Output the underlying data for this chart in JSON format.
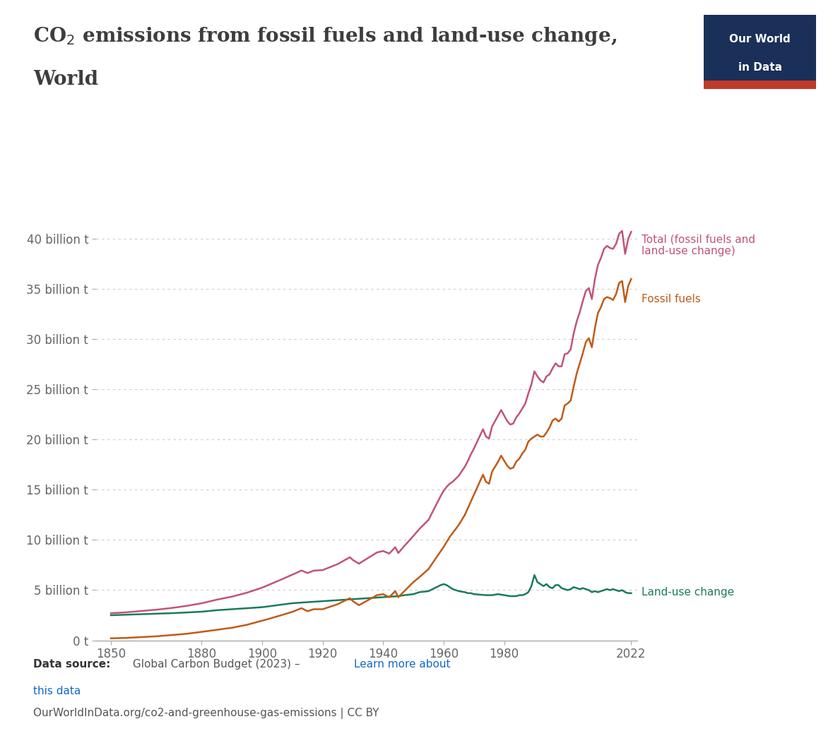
{
  "title_color": "#3d3d3d",
  "bg_color": "#ffffff",
  "fossil_color": "#bf5b17",
  "total_color": "#c0547a",
  "landuse_color": "#1a7b5a",
  "owid_bg": "#1a3058",
  "owid_red": "#c0392b",
  "xlabel_ticks": [
    1850,
    1880,
    1900,
    1920,
    1940,
    1960,
    1980,
    2022
  ],
  "ylim": [
    0,
    44
  ],
  "xlim": [
    1845,
    2024
  ],
  "ytick_labels": [
    "0 t",
    "5 billion t",
    "10 billion t",
    "15 billion t",
    "20 billion t",
    "25 billion t",
    "30 billion t",
    "35 billion t",
    "40 billion t"
  ],
  "ytick_values": [
    0,
    5,
    10,
    15,
    20,
    25,
    30,
    35,
    40
  ],
  "url_text": "OurWorldInData.org/co2-and-greenhouse-gas-emissions | CC BY",
  "annotation_total": "Total (fossil fuels and\nland-use change)",
  "annotation_fossil": "Fossil fuels",
  "annotation_landuse": "Land-use change",
  "fossil_points": [
    [
      1850,
      0.2
    ],
    [
      1855,
      0.24
    ],
    [
      1860,
      0.32
    ],
    [
      1865,
      0.4
    ],
    [
      1870,
      0.52
    ],
    [
      1875,
      0.65
    ],
    [
      1880,
      0.84
    ],
    [
      1885,
      1.05
    ],
    [
      1890,
      1.25
    ],
    [
      1895,
      1.55
    ],
    [
      1900,
      1.95
    ],
    [
      1905,
      2.38
    ],
    [
      1910,
      2.84
    ],
    [
      1913,
      3.2
    ],
    [
      1915,
      2.9
    ],
    [
      1917,
      3.1
    ],
    [
      1920,
      3.1
    ],
    [
      1925,
      3.6
    ],
    [
      1929,
      4.2
    ],
    [
      1930,
      3.9
    ],
    [
      1932,
      3.5
    ],
    [
      1935,
      4.0
    ],
    [
      1938,
      4.5
    ],
    [
      1940,
      4.6
    ],
    [
      1942,
      4.3
    ],
    [
      1944,
      4.9
    ],
    [
      1945,
      4.3
    ],
    [
      1948,
      5.2
    ],
    [
      1950,
      5.8
    ],
    [
      1952,
      6.3
    ],
    [
      1955,
      7.1
    ],
    [
      1957,
      8.0
    ],
    [
      1960,
      9.3
    ],
    [
      1962,
      10.3
    ],
    [
      1965,
      11.5
    ],
    [
      1967,
      12.5
    ],
    [
      1970,
      14.5
    ],
    [
      1973,
      16.5
    ],
    [
      1974,
      15.8
    ],
    [
      1975,
      15.6
    ],
    [
      1976,
      16.8
    ],
    [
      1978,
      17.8
    ],
    [
      1979,
      18.4
    ],
    [
      1980,
      17.9
    ],
    [
      1981,
      17.4
    ],
    [
      1982,
      17.1
    ],
    [
      1983,
      17.2
    ],
    [
      1984,
      17.8
    ],
    [
      1985,
      18.1
    ],
    [
      1986,
      18.6
    ],
    [
      1987,
      19.0
    ],
    [
      1988,
      19.8
    ],
    [
      1989,
      20.1
    ],
    [
      1990,
      20.3
    ],
    [
      1991,
      20.5
    ],
    [
      1992,
      20.3
    ],
    [
      1993,
      20.3
    ],
    [
      1994,
      20.7
    ],
    [
      1995,
      21.2
    ],
    [
      1996,
      21.9
    ],
    [
      1997,
      22.1
    ],
    [
      1998,
      21.8
    ],
    [
      1999,
      22.1
    ],
    [
      2000,
      23.4
    ],
    [
      2001,
      23.6
    ],
    [
      2002,
      23.9
    ],
    [
      2003,
      25.3
    ],
    [
      2004,
      26.6
    ],
    [
      2005,
      27.6
    ],
    [
      2006,
      28.6
    ],
    [
      2007,
      29.7
    ],
    [
      2008,
      30.1
    ],
    [
      2009,
      29.2
    ],
    [
      2010,
      31.1
    ],
    [
      2011,
      32.6
    ],
    [
      2012,
      33.2
    ],
    [
      2013,
      34.0
    ],
    [
      2014,
      34.2
    ],
    [
      2015,
      34.1
    ],
    [
      2016,
      33.9
    ],
    [
      2017,
      34.5
    ],
    [
      2018,
      35.6
    ],
    [
      2019,
      35.8
    ],
    [
      2020,
      33.7
    ],
    [
      2021,
      35.3
    ],
    [
      2022,
      36.0
    ]
  ],
  "landuse_points": [
    [
      1850,
      2.5
    ],
    [
      1855,
      2.55
    ],
    [
      1860,
      2.6
    ],
    [
      1865,
      2.65
    ],
    [
      1870,
      2.7
    ],
    [
      1875,
      2.78
    ],
    [
      1880,
      2.85
    ],
    [
      1885,
      3.0
    ],
    [
      1890,
      3.1
    ],
    [
      1895,
      3.2
    ],
    [
      1900,
      3.3
    ],
    [
      1905,
      3.5
    ],
    [
      1910,
      3.7
    ],
    [
      1915,
      3.8
    ],
    [
      1920,
      3.9
    ],
    [
      1925,
      4.0
    ],
    [
      1930,
      4.1
    ],
    [
      1935,
      4.2
    ],
    [
      1940,
      4.3
    ],
    [
      1945,
      4.4
    ],
    [
      1947,
      4.5
    ],
    [
      1950,
      4.6
    ],
    [
      1952,
      4.8
    ],
    [
      1955,
      4.9
    ],
    [
      1957,
      5.2
    ],
    [
      1959,
      5.5
    ],
    [
      1960,
      5.6
    ],
    [
      1961,
      5.5
    ],
    [
      1962,
      5.3
    ],
    [
      1963,
      5.1
    ],
    [
      1964,
      5.0
    ],
    [
      1965,
      4.9
    ],
    [
      1966,
      4.85
    ],
    [
      1967,
      4.8
    ],
    [
      1968,
      4.7
    ],
    [
      1969,
      4.7
    ],
    [
      1970,
      4.6
    ],
    [
      1972,
      4.55
    ],
    [
      1974,
      4.5
    ],
    [
      1976,
      4.5
    ],
    [
      1978,
      4.6
    ],
    [
      1980,
      4.5
    ],
    [
      1982,
      4.4
    ],
    [
      1984,
      4.4
    ],
    [
      1985,
      4.5
    ],
    [
      1986,
      4.5
    ],
    [
      1987,
      4.6
    ],
    [
      1988,
      4.8
    ],
    [
      1989,
      5.4
    ],
    [
      1990,
      6.5
    ],
    [
      1991,
      5.8
    ],
    [
      1992,
      5.6
    ],
    [
      1993,
      5.4
    ],
    [
      1994,
      5.6
    ],
    [
      1995,
      5.3
    ],
    [
      1996,
      5.2
    ],
    [
      1997,
      5.5
    ],
    [
      1998,
      5.5
    ],
    [
      1999,
      5.2
    ],
    [
      2000,
      5.1
    ],
    [
      2001,
      5.0
    ],
    [
      2002,
      5.1
    ],
    [
      2003,
      5.3
    ],
    [
      2004,
      5.2
    ],
    [
      2005,
      5.1
    ],
    [
      2006,
      5.2
    ],
    [
      2007,
      5.1
    ],
    [
      2008,
      5.0
    ],
    [
      2009,
      4.8
    ],
    [
      2010,
      4.9
    ],
    [
      2011,
      4.8
    ],
    [
      2012,
      4.9
    ],
    [
      2013,
      5.0
    ],
    [
      2014,
      5.1
    ],
    [
      2015,
      5.0
    ],
    [
      2016,
      5.1
    ],
    [
      2017,
      5.0
    ],
    [
      2018,
      4.9
    ],
    [
      2019,
      5.0
    ],
    [
      2020,
      4.8
    ],
    [
      2021,
      4.7
    ],
    [
      2022,
      4.7
    ]
  ]
}
